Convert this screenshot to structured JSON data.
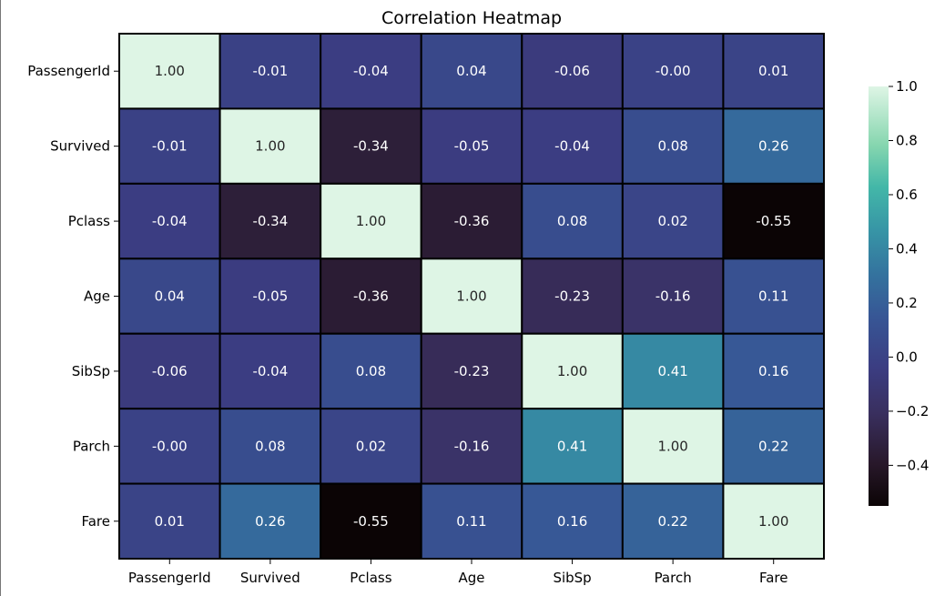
{
  "chart_data": {
    "type": "heatmap",
    "title": "Correlation Heatmap",
    "x_labels": [
      "PassengerId",
      "Survived",
      "Pclass",
      "Age",
      "SibSp",
      "Parch",
      "Fare"
    ],
    "y_labels": [
      "PassengerId",
      "Survived",
      "Pclass",
      "Age",
      "SibSp",
      "Parch",
      "Fare"
    ],
    "values": [
      [
        1.0,
        -0.01,
        -0.04,
        0.04,
        -0.06,
        -0.0,
        0.01
      ],
      [
        -0.01,
        1.0,
        -0.34,
        -0.05,
        -0.04,
        0.08,
        0.26
      ],
      [
        -0.04,
        -0.34,
        1.0,
        -0.36,
        0.08,
        0.02,
        -0.55
      ],
      [
        0.04,
        -0.05,
        -0.36,
        1.0,
        -0.23,
        -0.16,
        0.11
      ],
      [
        -0.06,
        -0.04,
        0.08,
        -0.23,
        1.0,
        0.41,
        0.16
      ],
      [
        -0.0,
        0.08,
        0.02,
        -0.16,
        0.41,
        1.0,
        0.22
      ],
      [
        0.01,
        0.26,
        -0.55,
        0.11,
        0.16,
        0.22,
        1.0
      ]
    ],
    "value_format": "0.00",
    "colormap": "mako",
    "color_range": [
      -0.55,
      1.0
    ],
    "colorbar_ticks": [
      1.0,
      0.8,
      0.6,
      0.4,
      0.2,
      0.0,
      -0.2,
      -0.4
    ],
    "colorbar_tick_labels": [
      "1.0",
      "0.8",
      "0.6",
      "0.4",
      "0.2",
      "0.0",
      "−0.2",
      "−0.4"
    ],
    "cell_border_color": "#000000",
    "legend": "right"
  }
}
